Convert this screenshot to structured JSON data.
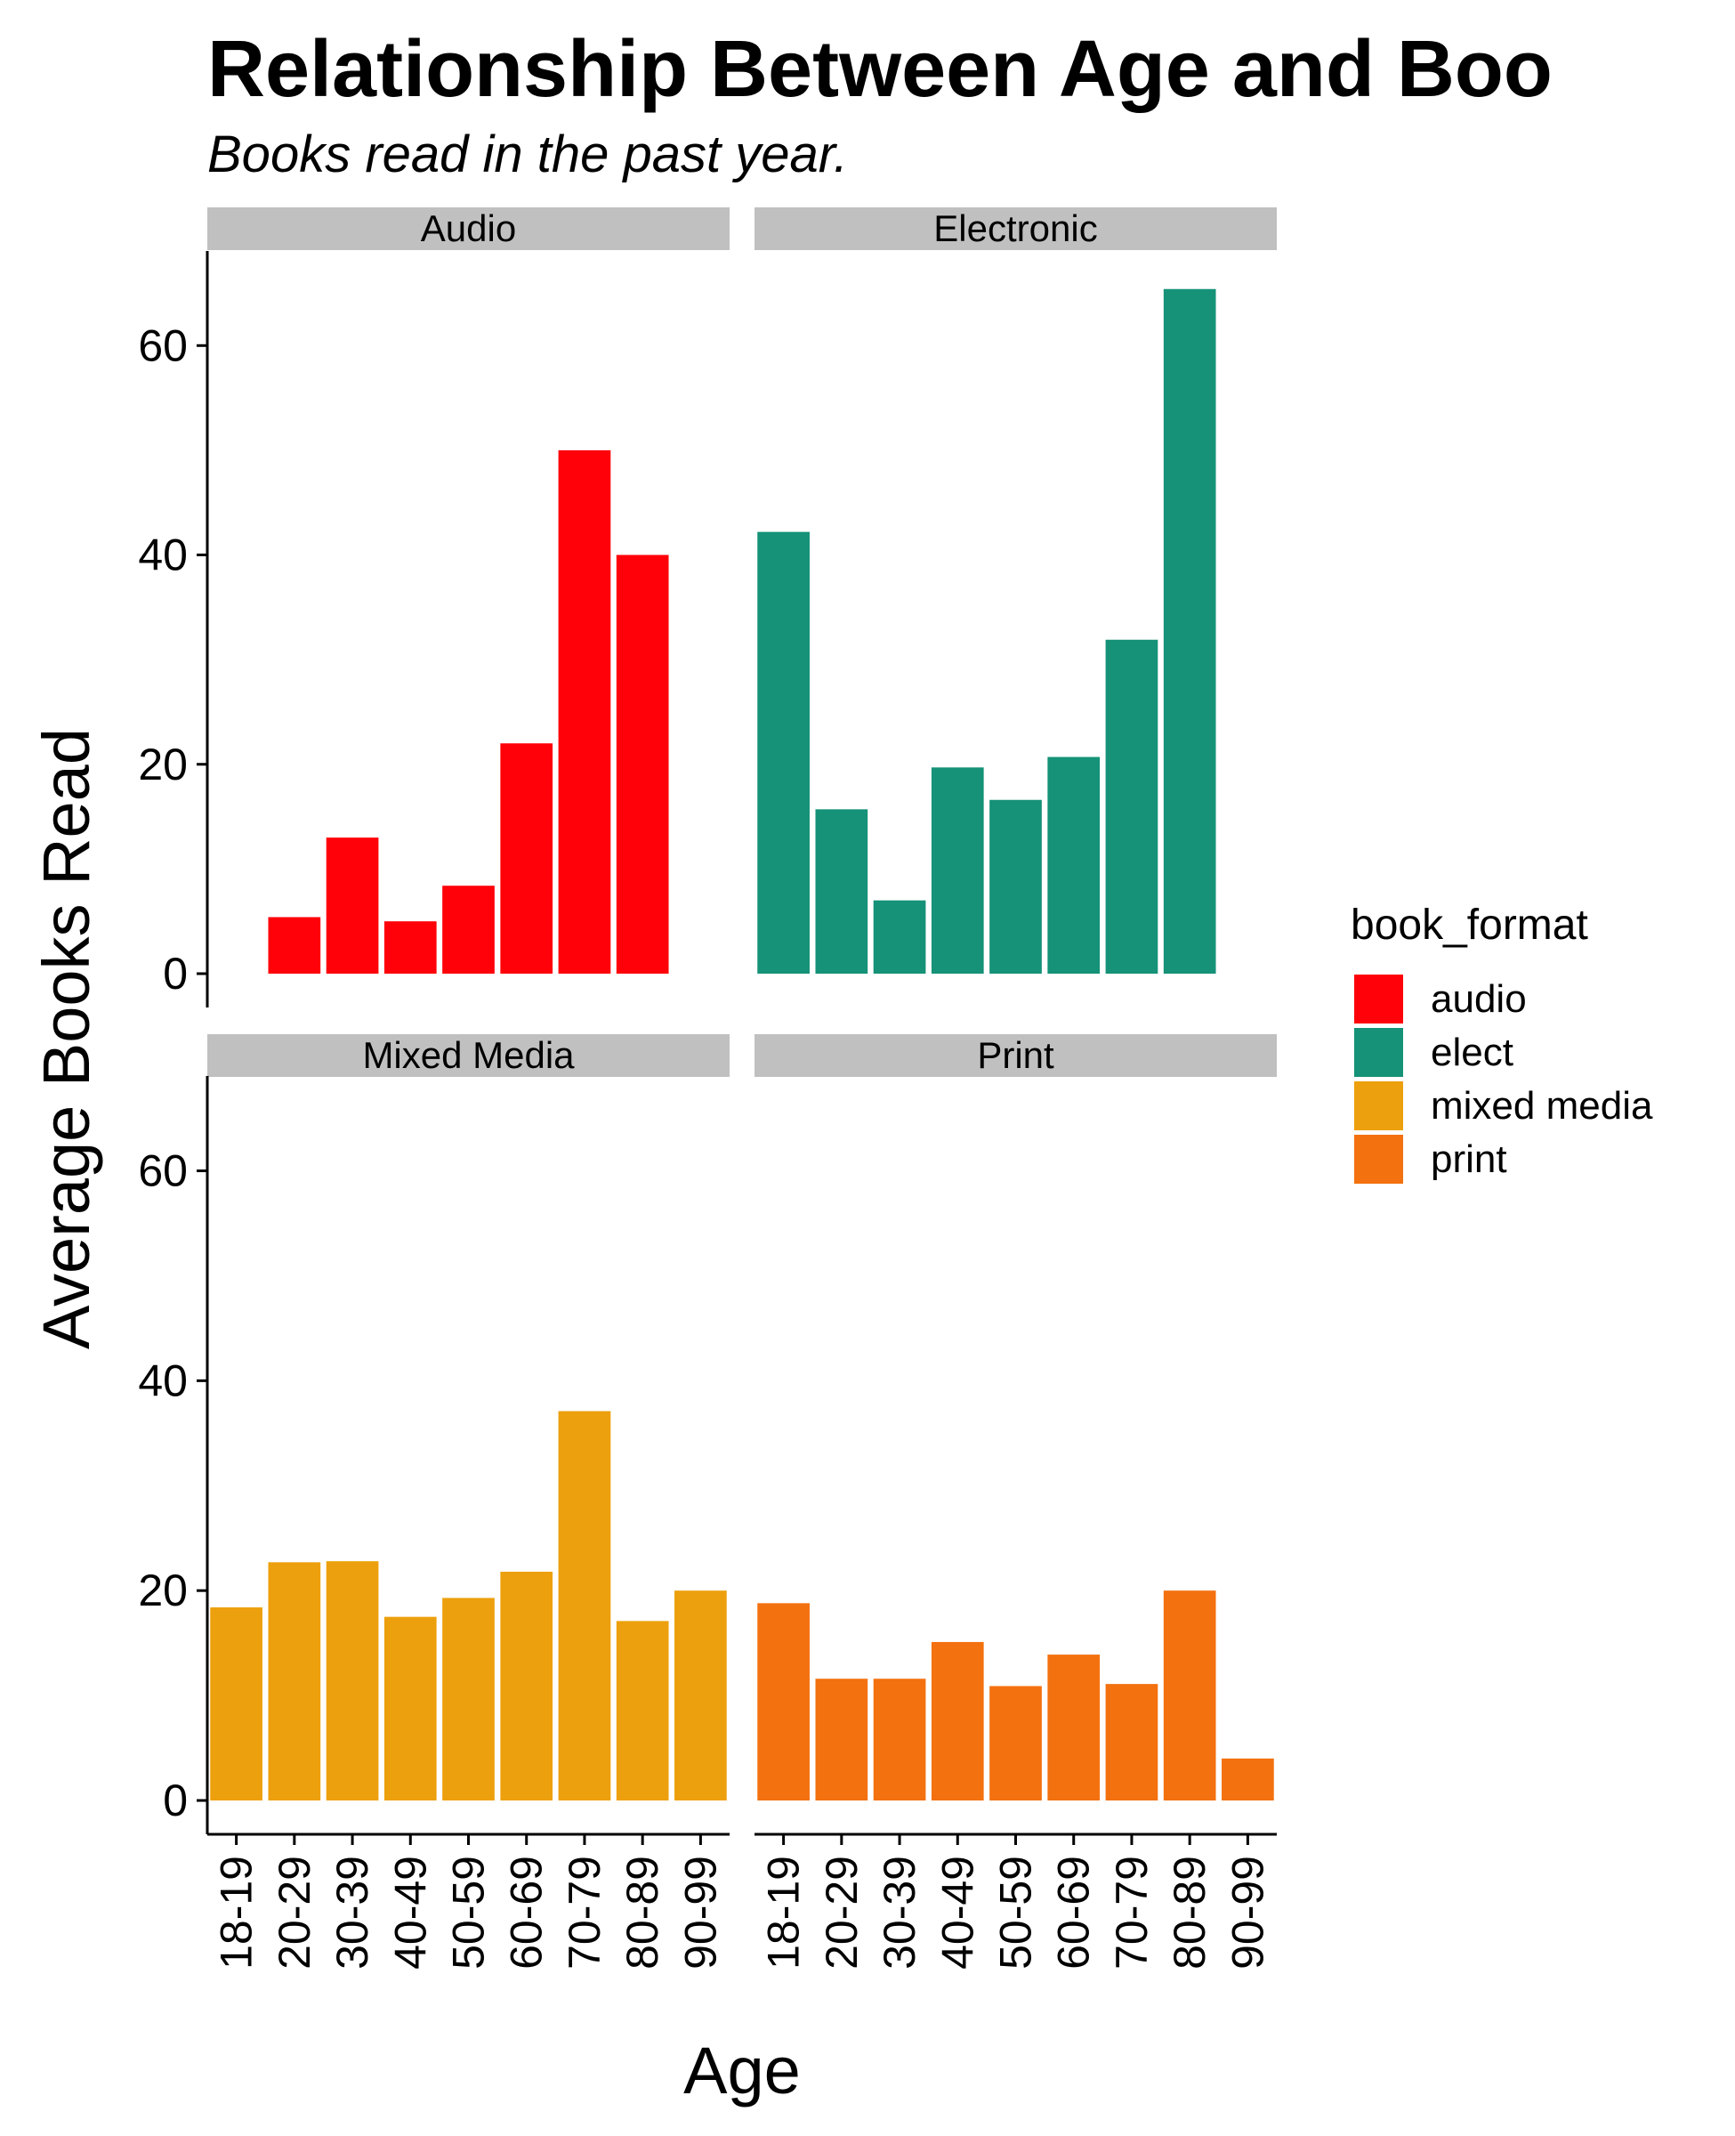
{
  "chart_data": {
    "type": "bar",
    "title": "Relationship Between Age and Boo",
    "subtitle": "Books read in the past year.",
    "xlabel": "Age",
    "ylabel": "Average Books Read",
    "ylim": [
      0,
      68
    ],
    "yticks": [
      0,
      20,
      40,
      60
    ],
    "grid": false,
    "categories": [
      "18-19",
      "20-29",
      "30-39",
      "40-49",
      "50-59",
      "60-69",
      "70-79",
      "80-89",
      "90-99"
    ],
    "legend": {
      "title": "book_format",
      "position": "right",
      "entries": [
        {
          "label": "audio",
          "color": "#FF0209"
        },
        {
          "label": "elect",
          "color": "#159277"
        },
        {
          "label": "mixed media",
          "color": "#EDA00D"
        },
        {
          "label": "print",
          "color": "#F3710F"
        }
      ]
    },
    "facets": [
      {
        "name": "Audio",
        "color": "#FF0209",
        "values": [
          null,
          5.4,
          13,
          5,
          8.4,
          22,
          50,
          40,
          null
        ]
      },
      {
        "name": "Electronic",
        "color": "#159277",
        "values": [
          42.2,
          15.7,
          7,
          19.7,
          16.6,
          20.7,
          31.9,
          65.4,
          null
        ]
      },
      {
        "name": "Mixed Media",
        "color": "#EDA00D",
        "values": [
          18.4,
          22.7,
          22.8,
          17.5,
          19.3,
          21.8,
          37.1,
          17.1,
          20
        ]
      },
      {
        "name": "Print",
        "color": "#F3710F",
        "values": [
          18.8,
          11.6,
          11.6,
          15.1,
          10.9,
          13.9,
          11.1,
          20,
          4
        ]
      }
    ]
  }
}
